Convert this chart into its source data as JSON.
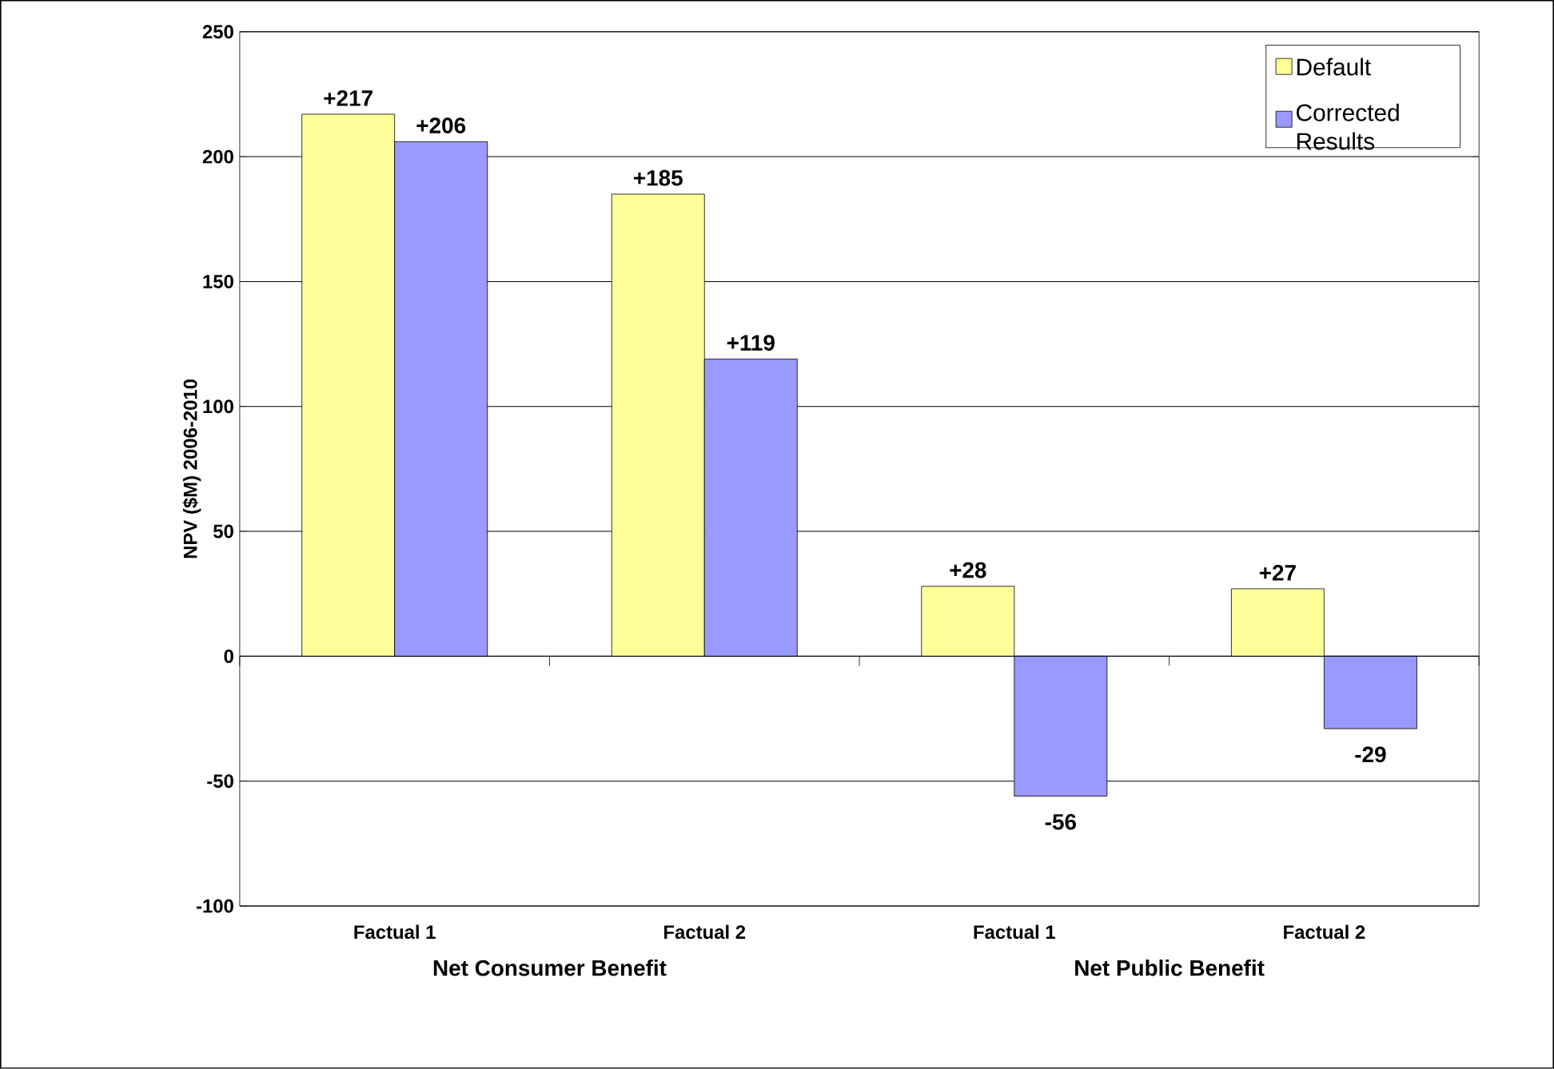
{
  "chart_data": {
    "type": "bar",
    "ylabel": "NPV ($M) 2006-2010",
    "categories": [
      "Factual 1",
      "Factual 2",
      "Factual 1",
      "Factual 2"
    ],
    "series": [
      {
        "name": "Default",
        "color": "#ffff99",
        "values": [
          217,
          185,
          28,
          27
        ],
        "value_labels": [
          "+217",
          "+185",
          "+28",
          "+27"
        ]
      },
      {
        "name": "Corrected Results",
        "color": "#9999ff",
        "values": [
          206,
          119,
          -56,
          -29
        ],
        "value_labels": [
          "+206",
          "+119",
          "-56",
          "-29"
        ]
      }
    ],
    "annotations": [
      "Net Consumer Benefit",
      "Net Public Benefit"
    ],
    "ylim": [
      -100,
      250
    ],
    "yticks": [
      -100,
      -50,
      0,
      50,
      100,
      150,
      200,
      250
    ],
    "grid": "y",
    "legend": "top right"
  }
}
